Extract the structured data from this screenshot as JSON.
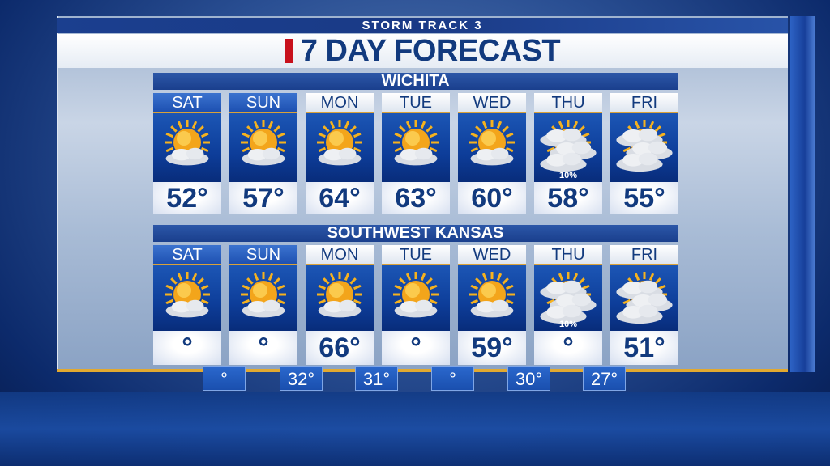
{
  "header": {
    "brand": "STORM TRACK 3",
    "title": "7 DAY FORECAST"
  },
  "colors": {
    "navy": "#123a7e",
    "accent_red": "#c8111c",
    "gold": "#e2a930"
  },
  "regions": [
    {
      "name": "WICHITA",
      "days": [
        {
          "day": "SAT",
          "icon": "partly-sunny-icon",
          "high": "52°",
          "pop": ""
        },
        {
          "day": "SUN",
          "icon": "partly-sunny-icon",
          "high": "57°",
          "pop": ""
        },
        {
          "day": "MON",
          "icon": "partly-sunny-icon",
          "high": "64°",
          "pop": ""
        },
        {
          "day": "TUE",
          "icon": "partly-sunny-icon",
          "high": "63°",
          "pop": ""
        },
        {
          "day": "WED",
          "icon": "partly-sunny-icon",
          "high": "60°",
          "pop": ""
        },
        {
          "day": "THU",
          "icon": "mostly-cloudy-icon",
          "high": "58°",
          "pop": "10%"
        },
        {
          "day": "FRI",
          "icon": "mostly-cloudy-icon",
          "high": "55°",
          "pop": ""
        }
      ]
    },
    {
      "name": "SOUTHWEST KANSAS",
      "days": [
        {
          "day": "SAT",
          "icon": "partly-sunny-icon",
          "high": "°",
          "pop": ""
        },
        {
          "day": "SUN",
          "icon": "partly-sunny-icon",
          "high": "°",
          "pop": ""
        },
        {
          "day": "MON",
          "icon": "partly-sunny-icon",
          "high": "66°",
          "pop": ""
        },
        {
          "day": "TUE",
          "icon": "partly-sunny-icon",
          "high": "°",
          "pop": ""
        },
        {
          "day": "WED",
          "icon": "partly-sunny-icon",
          "high": "59°",
          "pop": ""
        },
        {
          "day": "THU",
          "icon": "mostly-cloudy-icon",
          "high": "°",
          "pop": "10%"
        },
        {
          "day": "FRI",
          "icon": "mostly-cloudy-icon",
          "high": "51°",
          "pop": ""
        }
      ]
    }
  ],
  "lows": [
    "°",
    "32°",
    "31°",
    "°",
    "30°",
    "27°"
  ]
}
